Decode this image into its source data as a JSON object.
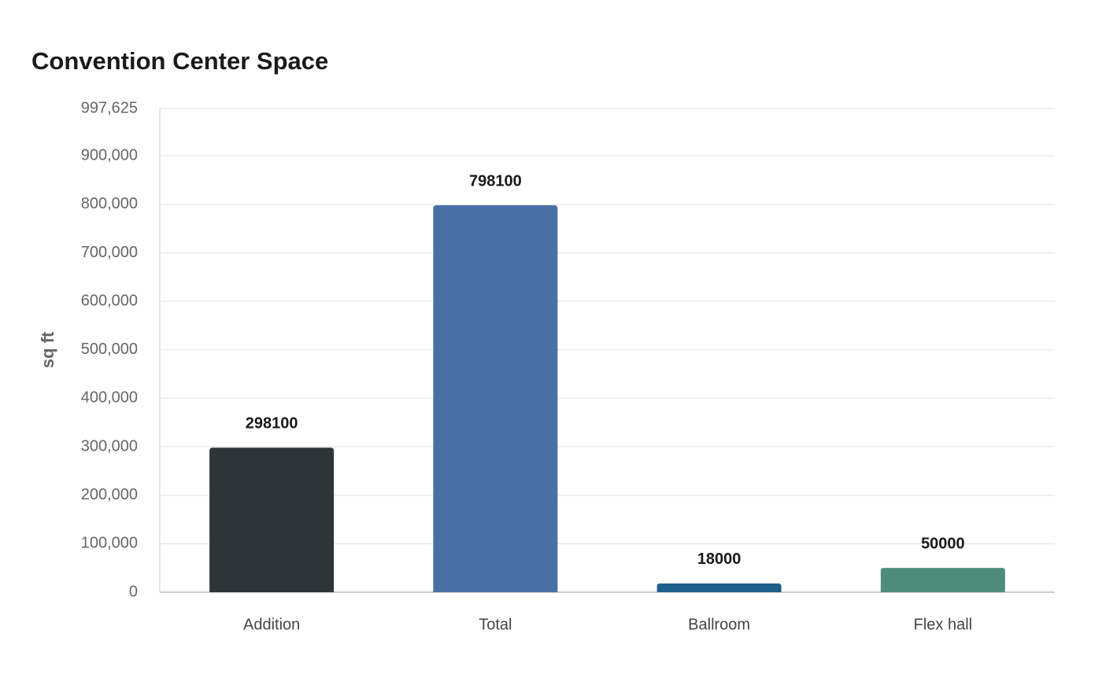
{
  "chart_data": {
    "type": "bar",
    "title": "Convention Center Space",
    "y_label": "sq ft",
    "categories": [
      "Addition",
      "Total",
      "Ballroom",
      "Flex hall"
    ],
    "values": [
      298100,
      798100,
      18000,
      50000
    ],
    "colors": [
      "#2e3538",
      "#4a6fa5",
      "#1f5f8b",
      "#4e8c7a"
    ],
    "ylim": [
      0,
      997625
    ],
    "yticks": [
      0,
      {
        "value": 100000,
        "label": "100,000"
      },
      {
        "value": 200000,
        "label": "200,000"
      },
      {
        "value": 300000,
        "label": "300,000"
      },
      {
        "value": 400000,
        "label": "400,000"
      },
      {
        "value": 500000,
        "label": "500,000"
      },
      {
        "value": 600000,
        "label": "600,000"
      },
      {
        "value": 700000,
        "label": "700,000"
      },
      {
        "value": 800000,
        "label": "800,000"
      },
      {
        "value": 900000,
        "label": "900,000"
      },
      {
        "value": 997625,
        "label": "997,625"
      }
    ],
    "grid": true,
    "data_labels": true
  }
}
